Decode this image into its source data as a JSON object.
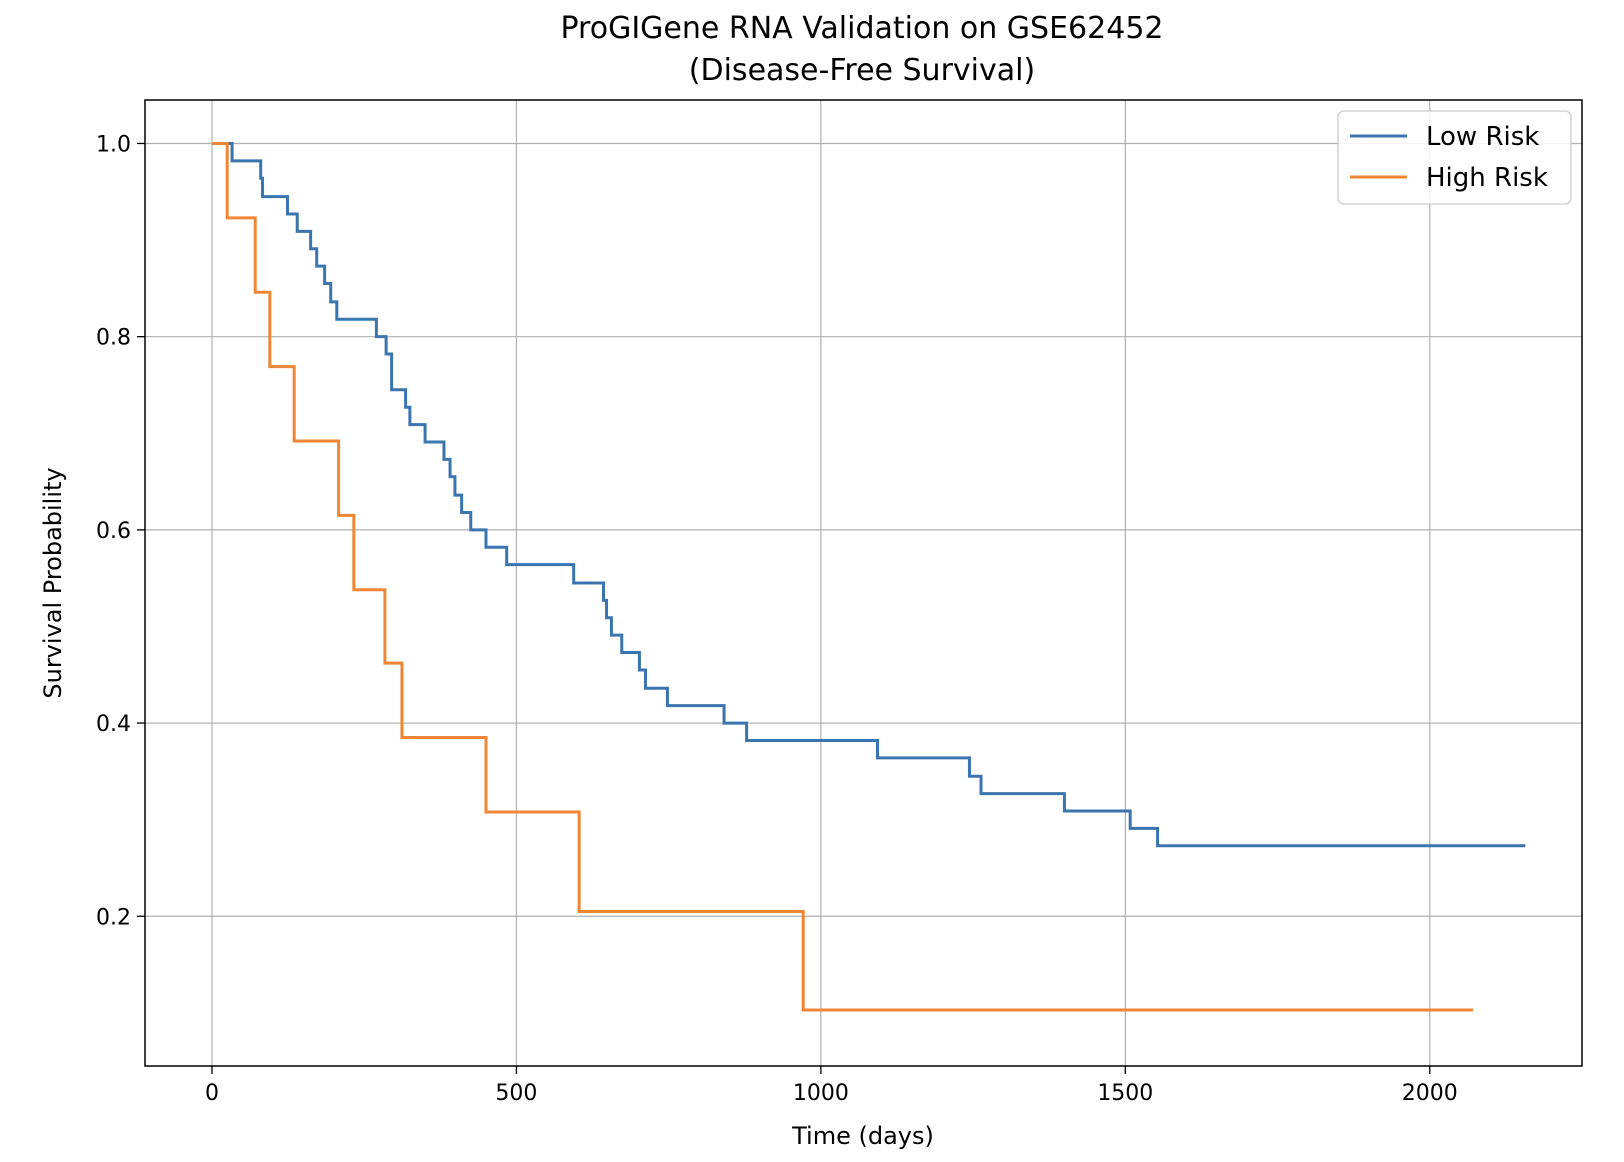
{
  "chart_data": {
    "type": "line",
    "step": true,
    "title": "ProGIGene RNA Validation on GSE62452",
    "subtitle": "(Disease-Free Survival)",
    "xlabel": "Time (days)",
    "ylabel": "Survival Probability",
    "xlim": [
      -110,
      2250
    ],
    "ylim": [
      0.045,
      1.045
    ],
    "xticks": [
      0,
      500,
      1000,
      1500,
      2000
    ],
    "yticks": [
      0.2,
      0.4,
      0.6,
      0.8,
      1.0
    ],
    "xtick_labels": [
      "0",
      "500",
      "1000",
      "1500",
      "2000"
    ],
    "ytick_labels": [
      "0.2",
      "0.4",
      "0.6",
      "0.8",
      "1.0"
    ],
    "grid": true,
    "legend_position": "top-right",
    "series": [
      {
        "name": "Low Risk",
        "color": "#3b75af",
        "x": [
          0,
          33,
          80,
          83,
          124,
          140,
          162,
          172,
          185,
          195,
          205,
          270,
          286,
          295,
          318,
          325,
          350,
          381,
          391,
          399,
          410,
          425,
          450,
          484,
          594,
          643,
          648,
          656,
          673,
          702,
          712,
          748,
          841,
          878,
          1093,
          1244,
          1263,
          1400,
          1508,
          1553,
          2157
        ],
        "y": [
          1.0,
          0.982,
          0.964,
          0.945,
          0.927,
          0.909,
          0.891,
          0.873,
          0.855,
          0.836,
          0.818,
          0.8,
          0.782,
          0.745,
          0.727,
          0.709,
          0.691,
          0.673,
          0.655,
          0.636,
          0.618,
          0.6,
          0.582,
          0.564,
          0.545,
          0.527,
          0.509,
          0.491,
          0.473,
          0.455,
          0.436,
          0.418,
          0.4,
          0.382,
          0.364,
          0.345,
          0.327,
          0.309,
          0.291,
          0.273,
          0.273
        ]
      },
      {
        "name": "High Risk",
        "color": "#ef8636",
        "x": [
          0,
          25,
          71,
          95,
          135,
          208,
          233,
          284,
          312,
          450,
          603,
          971,
          2071
        ],
        "y": [
          1.0,
          0.923,
          0.846,
          0.769,
          0.692,
          0.615,
          0.538,
          0.462,
          0.385,
          0.308,
          0.205,
          0.103,
          0.103
        ]
      }
    ]
  }
}
